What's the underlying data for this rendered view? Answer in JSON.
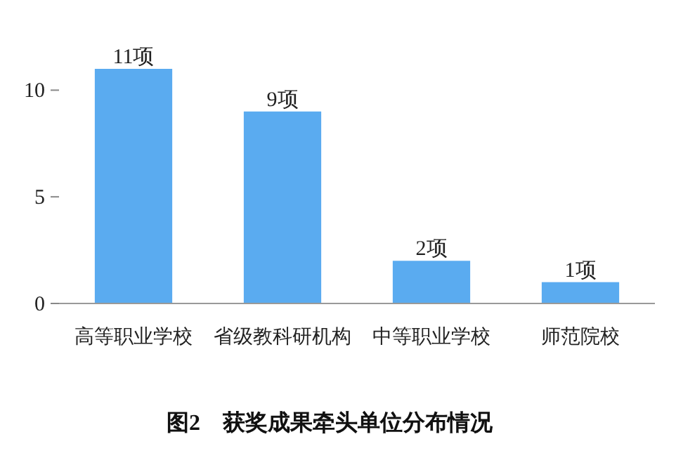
{
  "chart_data": {
    "type": "bar",
    "title": "图2　获奖成果牵头单位分布情况",
    "categories": [
      "高等职业学校",
      "省级教科研机构",
      "中等职业学校",
      "师范院校"
    ],
    "values": [
      11,
      9,
      2,
      1
    ],
    "value_labels": [
      "11项",
      "9项",
      "2项",
      "1项"
    ],
    "color": "#5aabf0",
    "ylim": [
      0,
      11
    ],
    "yticks": [
      0,
      5,
      10
    ],
    "grid": false
  }
}
